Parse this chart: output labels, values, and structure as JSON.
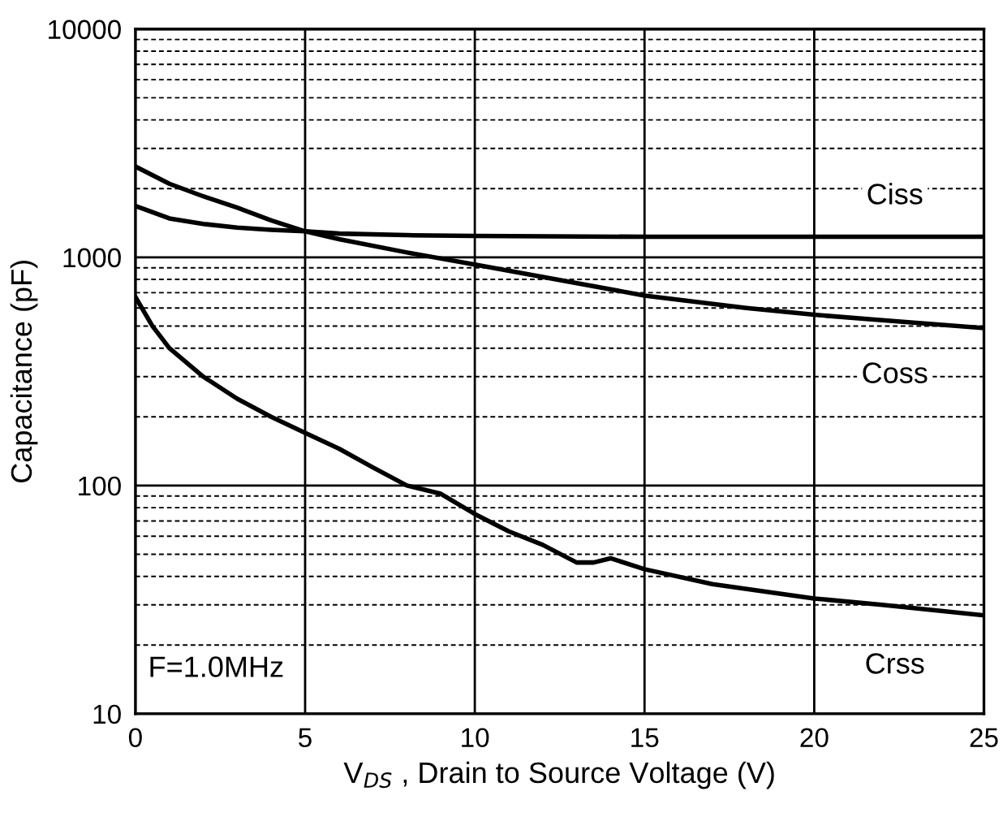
{
  "chart_data": {
    "type": "line",
    "xlabel": "V$_{DS}$ , Drain to Source Voltage (V)",
    "ylabel": "Capacitance (pF)",
    "log": "y",
    "xlim": [
      0,
      25
    ],
    "ylim": [
      10,
      10000
    ],
    "xticks": [
      0,
      5,
      10,
      15,
      20,
      25
    ],
    "yticks": [
      10,
      100,
      1000,
      10000
    ],
    "grid": true,
    "legend": false,
    "marker": "none",
    "line_style": "solid",
    "annotations": [
      "F=1.0MHz"
    ],
    "series": [
      {
        "name": "Ciss",
        "color": "#000000",
        "x": [
          0,
          1,
          2,
          3,
          4,
          5,
          6,
          8,
          10,
          15,
          20,
          25
        ],
        "values": [
          1680,
          1480,
          1400,
          1350,
          1320,
          1300,
          1270,
          1250,
          1240,
          1230,
          1230,
          1230
        ]
      },
      {
        "name": "Coss",
        "color": "#000000",
        "x": [
          0,
          1,
          2,
          3,
          4,
          5,
          6,
          8,
          10,
          12,
          15,
          18,
          20,
          22,
          25
        ],
        "values": [
          2500,
          2100,
          1850,
          1650,
          1450,
          1300,
          1200,
          1050,
          930,
          820,
          680,
          600,
          560,
          530,
          490
        ]
      },
      {
        "name": "Crss",
        "color": "#000000",
        "x": [
          0,
          0.5,
          1,
          2,
          3,
          4,
          5,
          6,
          7,
          8,
          9,
          10,
          11,
          12,
          13,
          13.5,
          14,
          15,
          17,
          20,
          22,
          25
        ],
        "values": [
          670,
          500,
          400,
          300,
          240,
          200,
          170,
          145,
          120,
          100,
          92,
          75,
          63,
          55,
          46,
          46,
          48,
          43,
          37,
          32,
          30,
          27
        ]
      }
    ]
  }
}
